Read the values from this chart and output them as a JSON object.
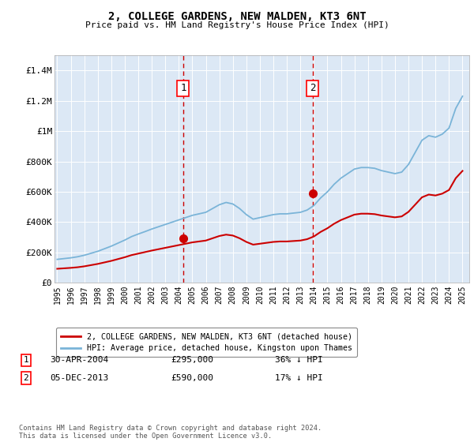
{
  "title": "2, COLLEGE GARDENS, NEW MALDEN, KT3 6NT",
  "subtitle": "Price paid vs. HM Land Registry's House Price Index (HPI)",
  "legend_line1": "2, COLLEGE GARDENS, NEW MALDEN, KT3 6NT (detached house)",
  "legend_line2": "HPI: Average price, detached house, Kingston upon Thames",
  "annotation1_label": "1",
  "annotation1_date": "30-APR-2004",
  "annotation1_price": "£295,000",
  "annotation1_hpi": "36% ↓ HPI",
  "annotation2_label": "2",
  "annotation2_date": "05-DEC-2013",
  "annotation2_price": "£590,000",
  "annotation2_hpi": "17% ↓ HPI",
  "footer": "Contains HM Land Registry data © Crown copyright and database right 2024.\nThis data is licensed under the Open Government Licence v3.0.",
  "hpi_color": "#7ab4d8",
  "price_color": "#cc0000",
  "vline_color": "#cc0000",
  "background_color": "#dce8f5",
  "ylim": [
    0,
    1500000
  ],
  "yticks": [
    0,
    200000,
    400000,
    600000,
    800000,
    1000000,
    1200000,
    1400000
  ],
  "hpi_x": [
    1995.0,
    1995.5,
    1996.0,
    1996.5,
    1997.0,
    1997.5,
    1998.0,
    1998.5,
    1999.0,
    1999.5,
    2000.0,
    2000.5,
    2001.0,
    2001.5,
    2002.0,
    2002.5,
    2003.0,
    2003.5,
    2004.0,
    2004.5,
    2005.0,
    2005.5,
    2006.0,
    2006.5,
    2007.0,
    2007.5,
    2008.0,
    2008.5,
    2009.0,
    2009.5,
    2010.0,
    2010.5,
    2011.0,
    2011.5,
    2012.0,
    2012.5,
    2013.0,
    2013.5,
    2014.0,
    2014.5,
    2015.0,
    2015.5,
    2016.0,
    2016.5,
    2017.0,
    2017.5,
    2018.0,
    2018.5,
    2019.0,
    2019.5,
    2020.0,
    2020.5,
    2021.0,
    2021.5,
    2022.0,
    2022.5,
    2023.0,
    2023.5,
    2024.0,
    2024.5,
    2025.0
  ],
  "hpi_y": [
    155000,
    160000,
    165000,
    172000,
    182000,
    195000,
    208000,
    225000,
    242000,
    262000,
    282000,
    305000,
    322000,
    338000,
    355000,
    370000,
    385000,
    400000,
    415000,
    430000,
    445000,
    455000,
    465000,
    490000,
    515000,
    530000,
    520000,
    490000,
    450000,
    420000,
    430000,
    440000,
    450000,
    455000,
    455000,
    460000,
    465000,
    480000,
    510000,
    560000,
    600000,
    650000,
    690000,
    720000,
    750000,
    760000,
    760000,
    755000,
    740000,
    730000,
    720000,
    730000,
    780000,
    860000,
    940000,
    970000,
    960000,
    980000,
    1020000,
    1150000,
    1230000
  ],
  "price_x": [
    1995.0,
    1995.5,
    1996.0,
    1996.5,
    1997.0,
    1997.5,
    1998.0,
    1998.5,
    1999.0,
    1999.5,
    2000.0,
    2000.5,
    2001.0,
    2001.5,
    2002.0,
    2002.5,
    2003.0,
    2003.5,
    2004.0,
    2004.5,
    2005.0,
    2005.5,
    2006.0,
    2006.5,
    2007.0,
    2007.5,
    2008.0,
    2008.5,
    2009.0,
    2009.5,
    2010.0,
    2010.5,
    2011.0,
    2011.5,
    2012.0,
    2012.5,
    2013.0,
    2013.5,
    2014.0,
    2014.5,
    2015.0,
    2015.5,
    2016.0,
    2016.5,
    2017.0,
    2017.5,
    2018.0,
    2018.5,
    2019.0,
    2019.5,
    2020.0,
    2020.5,
    2021.0,
    2021.5,
    2022.0,
    2022.5,
    2023.0,
    2023.5,
    2024.0,
    2024.5,
    2025.0
  ],
  "price_y": [
    93000,
    96000,
    99000,
    103000,
    109000,
    117000,
    125000,
    135000,
    145000,
    157000,
    169000,
    183000,
    193000,
    203000,
    213000,
    222000,
    231000,
    240000,
    249000,
    258000,
    267000,
    273000,
    279000,
    294000,
    309000,
    318000,
    312000,
    294000,
    270000,
    252000,
    258000,
    264000,
    270000,
    273000,
    273000,
    276000,
    279000,
    288000,
    306000,
    336000,
    360000,
    390000,
    414000,
    432000,
    450000,
    456000,
    456000,
    453000,
    444000,
    438000,
    432000,
    438000,
    468000,
    516000,
    564000,
    582000,
    576000,
    588000,
    612000,
    690000,
    738000
  ],
  "sale1_year": 2004.33,
  "sale1_price": 295000,
  "sale2_year": 2013.92,
  "sale2_price": 590000,
  "xtick_years": [
    1995,
    1996,
    1997,
    1998,
    1999,
    2000,
    2001,
    2002,
    2003,
    2004,
    2005,
    2006,
    2007,
    2008,
    2009,
    2010,
    2011,
    2012,
    2013,
    2014,
    2015,
    2016,
    2017,
    2018,
    2019,
    2020,
    2021,
    2022,
    2023,
    2024,
    2025
  ]
}
